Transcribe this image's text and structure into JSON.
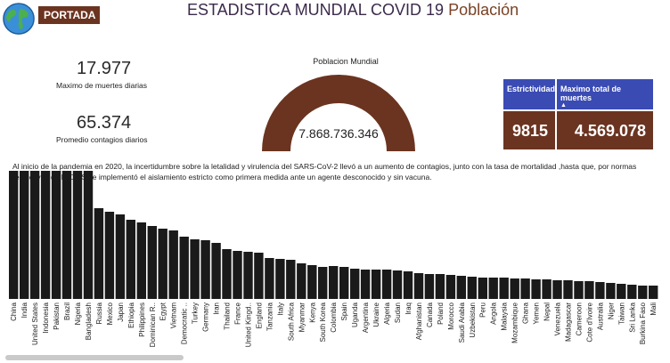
{
  "header": {
    "portada_label": "PORTADA",
    "title_main": "ESTADISTICA MUNDIAL COVID 19",
    "title_accent": "Población"
  },
  "kpis": {
    "max_deaths_value": "17.977",
    "max_deaths_label": "Maximo de muertes diarias",
    "avg_contagions_value": "65.374",
    "avg_contagions_label": "Promedio contagios diarios"
  },
  "gauge": {
    "title": "Poblacion Mundial",
    "value": "7.868.736.346"
  },
  "cards": {
    "strictness_header": "Estrictividad",
    "strictness_value": "9815",
    "max_deaths_header": "Maximo total de muertes",
    "max_deaths_value": "4.569.078"
  },
  "description": "Al inicio de la pandemia en 2020, la incertidumbre sobre la letalidad y virulencia del SARS-CoV-2 llevó a un aumento de contagios, junto con la tasa de mortalidad ,hasta que, por normas restrictivas de la OMS se implementó el aislamiento estricto como primera medida ante un agente desconocido y sin vacuna.",
  "colors": {
    "bar": "#1a1a1a",
    "accent_brown": "#6b3420",
    "card_header_blue": "#3a4bb3"
  },
  "chart_data": {
    "type": "bar",
    "categories": [
      "China",
      "India",
      "United States",
      "Indonesia",
      "Pakistan",
      "Brazil",
      "Nigeria",
      "Bangladesh",
      "Russia",
      "Mexico",
      "Japan",
      "Ethiopia",
      "Philippines",
      "Dominican R..",
      "Egypt",
      "Vietnam",
      "Democratic ..",
      "Turkey",
      "Germany",
      "Iran",
      "Thailand",
      "France",
      "United Kingd..",
      "England",
      "Tanzania",
      "Italy",
      "South Africa",
      "Myanmar",
      "Kenya",
      "South Korea",
      "Colombia",
      "Spain",
      "Uganda",
      "Argentina",
      "Ukraine",
      "Algeria",
      "Sudan",
      "Iraq",
      "Afghanistan",
      "Canada",
      "Poland",
      "Morocco",
      "Saudi Arabia",
      "Uzbekistan",
      "Peru",
      "Angola",
      "Malaysia",
      "Mozambique",
      "Ghana",
      "Yemen",
      "Nepal",
      "Venezuela",
      "Madagascar",
      "Cameroon",
      "Cote d'Ivoire",
      "Australia",
      "Niger",
      "Taiwan",
      "Sri Lanka",
      "Burkina Faso",
      "Mali"
    ],
    "values": [
      144,
      144,
      144,
      144,
      144,
      144,
      144,
      144,
      102,
      98,
      95,
      89,
      86,
      82,
      79,
      77,
      70,
      67,
      66,
      63,
      56,
      54,
      53,
      52,
      46,
      45,
      44,
      40,
      38,
      36,
      37,
      36,
      34,
      33,
      33,
      33,
      32,
      31,
      29,
      28,
      28,
      27,
      26,
      25,
      24,
      24,
      24,
      23,
      23,
      22,
      22,
      21,
      21,
      20,
      20,
      19,
      18,
      17,
      16,
      15,
      15
    ],
    "ylim": [
      0,
      150
    ],
    "xlabel": "",
    "ylabel": "",
    "grid": false
  }
}
